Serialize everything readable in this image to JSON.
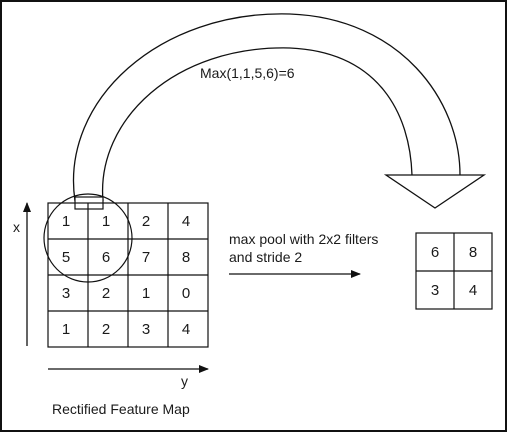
{
  "formula": "Max(1,1,5,6)=6",
  "operation_label": {
    "line1": "max pool with 2x2 filters",
    "line2": "and stride 2"
  },
  "axes": {
    "x": "x",
    "y": "y"
  },
  "caption": "Rectified Feature Map",
  "input_matrix": [
    [
      "1",
      "1",
      "2",
      "4"
    ],
    [
      "5",
      "6",
      "7",
      "8"
    ],
    [
      "3",
      "2",
      "1",
      "0"
    ],
    [
      "1",
      "2",
      "3",
      "4"
    ]
  ],
  "output_matrix": [
    [
      "6",
      "8"
    ],
    [
      "3",
      "4"
    ]
  ]
}
